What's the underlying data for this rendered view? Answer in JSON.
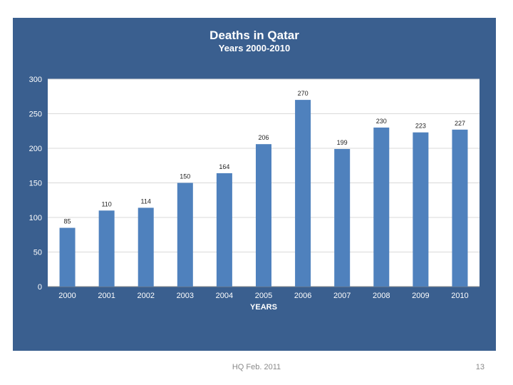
{
  "chart_data": {
    "type": "bar",
    "title": "Deaths  in Qatar",
    "subtitle": "Years  2000-2010",
    "xlabel": "YEARS",
    "ylabel": "",
    "categories": [
      "2000",
      "2001",
      "2002",
      "2003",
      "2004",
      "2005",
      "2006",
      "2007",
      "2008",
      "2009",
      "2010"
    ],
    "values": [
      85,
      110,
      114,
      150,
      164,
      206,
      270,
      199,
      230,
      223,
      227
    ],
    "ylim": [
      0,
      300
    ],
    "yticks": [
      0,
      50,
      100,
      150,
      200,
      250,
      300
    ],
    "grid": true,
    "bar_color": "#4f81bd",
    "background_color": "#3a5f8f",
    "plot_background": "#ffffff"
  },
  "footer": {
    "text": "HQ Feb. 2011",
    "page_number": "13"
  }
}
